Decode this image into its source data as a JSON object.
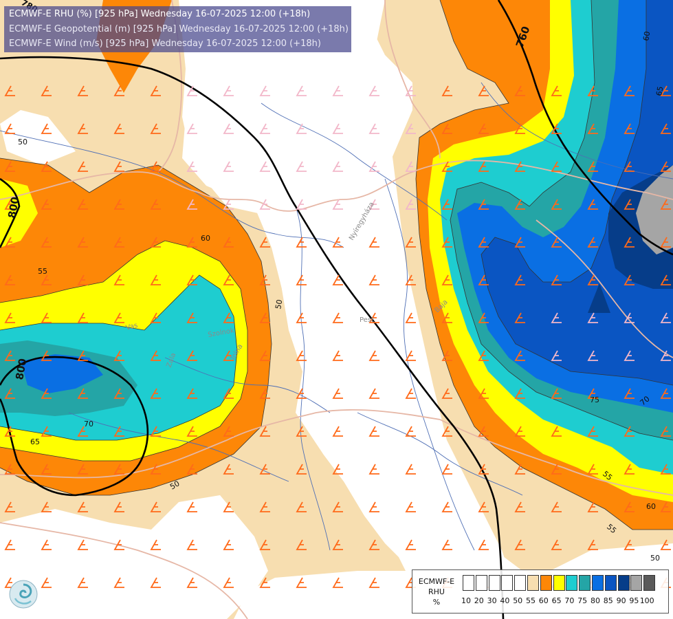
{
  "header": {
    "lines": [
      "ECMWF-E RHU (%) [925 hPa] Wednesday 16-07-2025 12:00 (+18h)",
      "ECMWF-E Geopotential (m) [925 hPa] Wednesday 16-07-2025 12:00 (+18h)",
      "ECMWF-E Wind (m/s) [925 hPa] Wednesday 16-07-2025 12:00 (+18h)"
    ]
  },
  "map": {
    "colors": {
      "lt50": "#ffffff",
      "c50": "#f7deb0",
      "c55": "#fd8707",
      "c60": "#ffff00",
      "c65": "#1ecdd0",
      "c70": "#24a5a6",
      "c75": "#0a6fe3",
      "c80": "#0a55c2",
      "c85": "#063d89",
      "c90": "#a5a5a5",
      "border": "#e6b7a6",
      "river": "#4f6fb5",
      "geopotential": "#000000"
    },
    "contour_labels": [
      "800",
      "760",
      "800",
      "50",
      "55",
      "60",
      "50",
      "55",
      "65",
      "70",
      "50",
      "50",
      "60",
      "65",
      "70",
      "75",
      "55",
      "60",
      "55",
      "50",
      "55",
      "50"
    ],
    "geopotential_labels": [
      "760",
      "800",
      "800",
      "780"
    ],
    "place_labels": [
      "Nyíregyháza",
      "Pest",
      "Baja",
      "Vas",
      "Zala",
      "Szolnok",
      "Tolna"
    ]
  },
  "legend": {
    "title": "ECMWF-E\nRHU\n%",
    "title_lines": [
      "ECMWF-E",
      "RHU",
      "%"
    ],
    "ticks": [
      "10",
      "20",
      "30",
      "40",
      "50",
      "55",
      "60",
      "65",
      "70",
      "75",
      "80",
      "85",
      "90",
      "95",
      "100"
    ],
    "swatch_colors": [
      "#ffffff",
      "#ffffff",
      "#ffffff",
      "#ffffff",
      "#ffffff",
      "#f7deb0",
      "#fd8707",
      "#ffff00",
      "#1ecdd0",
      "#24a5a6",
      "#0a6fe3",
      "#0a55c2",
      "#063d89",
      "#a5a5a5",
      "#5a5a5a"
    ]
  },
  "logo": {
    "icon": "ecmwf-swirl-logo"
  }
}
